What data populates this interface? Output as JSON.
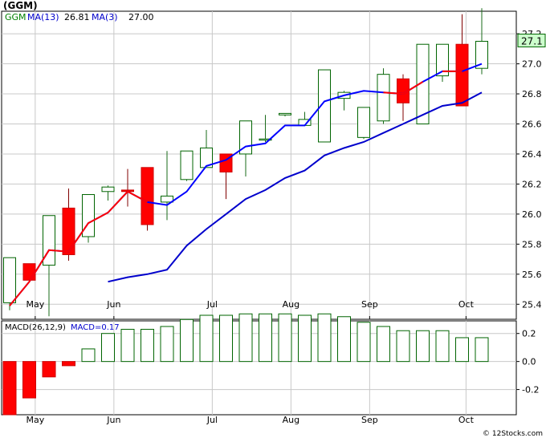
{
  "header": {
    "title": "(GGM)"
  },
  "footer": {
    "credit": "© 12Stocks.com"
  },
  "chart_data": [
    {
      "type": "candlestick",
      "legend": {
        "ticker": "GGM",
        "ma_long_label": "MA(13)",
        "ma_long_value": "26.81",
        "ma_short_label": "MA(3)",
        "ma_short_value": "27.00"
      },
      "price_badge": "27.1",
      "ylim": [
        25.3,
        27.35
      ],
      "yticks": [
        25.4,
        25.6,
        25.8,
        26.0,
        26.2,
        26.4,
        26.6,
        26.8,
        27.0,
        27.2
      ],
      "ytick_labels": [
        "25.4",
        "25.6",
        "25.8",
        "26.0",
        "26.2",
        "26.4",
        "26.6",
        "26.8",
        "27.0",
        "27.2"
      ],
      "months": [
        {
          "label": "May",
          "week": 1.3
        },
        {
          "label": "Jun",
          "week": 5.3
        },
        {
          "label": "Jul",
          "week": 10.3
        },
        {
          "label": "Aug",
          "week": 14.3
        },
        {
          "label": "Sep",
          "week": 18.3
        },
        {
          "label": "Oct",
          "week": 23.2
        }
      ],
      "candles": [
        {
          "o": 25.41,
          "h": 25.71,
          "l": 25.36,
          "c": 25.71
        },
        {
          "o": 25.67,
          "h": 25.67,
          "l": 25.55,
          "c": 25.56
        },
        {
          "o": 25.66,
          "h": 25.99,
          "l": 25.32,
          "c": 25.99
        },
        {
          "o": 26.04,
          "h": 26.17,
          "l": 25.69,
          "c": 25.73
        },
        {
          "o": 25.85,
          "h": 26.13,
          "l": 25.81,
          "c": 26.13
        },
        {
          "o": 26.15,
          "h": 26.19,
          "l": 26.09,
          "c": 26.18
        },
        {
          "o": 26.16,
          "h": 26.3,
          "l": 26.05,
          "c": 26.15
        },
        {
          "o": 26.31,
          "h": 26.31,
          "l": 25.89,
          "c": 25.93
        },
        {
          "o": 26.08,
          "h": 26.42,
          "l": 25.96,
          "c": 26.12
        },
        {
          "o": 26.23,
          "h": 26.42,
          "l": 26.22,
          "c": 26.42
        },
        {
          "o": 26.31,
          "h": 26.56,
          "l": 26.31,
          "c": 26.44
        },
        {
          "o": 26.4,
          "h": 26.4,
          "l": 26.1,
          "c": 26.28
        },
        {
          "o": 26.4,
          "h": 26.62,
          "l": 26.25,
          "c": 26.62
        },
        {
          "o": 26.5,
          "h": 26.66,
          "l": 26.48,
          "c": 26.5
        },
        {
          "o": 26.66,
          "h": 26.66,
          "l": 26.65,
          "c": 26.67
        },
        {
          "o": 26.59,
          "h": 26.68,
          "l": 26.59,
          "c": 26.63
        },
        {
          "o": 26.48,
          "h": 26.96,
          "l": 26.48,
          "c": 26.96
        },
        {
          "o": 26.77,
          "h": 26.82,
          "l": 26.69,
          "c": 26.81
        },
        {
          "o": 26.51,
          "h": 26.71,
          "l": 26.5,
          "c": 26.71
        },
        {
          "o": 26.62,
          "h": 26.97,
          "l": 26.6,
          "c": 26.93
        },
        {
          "o": 26.9,
          "h": 26.93,
          "l": 26.62,
          "c": 26.74
        },
        {
          "o": 26.6,
          "h": 27.13,
          "l": 26.6,
          "c": 27.13
        },
        {
          "o": 26.92,
          "h": 27.13,
          "l": 26.88,
          "c": 27.13
        },
        {
          "o": 27.13,
          "h": 27.33,
          "l": 26.72,
          "c": 26.72
        },
        {
          "o": 26.97,
          "h": 27.37,
          "l": 26.93,
          "c": 27.15
        }
      ],
      "ma3": [
        25.39,
        25.55,
        25.76,
        25.75,
        25.94,
        26.01,
        26.15,
        26.08,
        26.06,
        26.15,
        26.32,
        26.36,
        26.45,
        26.47,
        26.59,
        26.59,
        26.75,
        26.79,
        26.82,
        26.81,
        26.8,
        26.88,
        26.95,
        26.95,
        27.0
      ],
      "ma13": [
        null,
        null,
        null,
        null,
        null,
        25.55,
        25.58,
        25.6,
        25.63,
        25.79,
        25.9,
        26.0,
        26.1,
        26.16,
        26.24,
        26.29,
        26.39,
        26.44,
        26.48,
        26.54,
        26.6,
        26.66,
        26.72,
        26.74,
        26.81
      ],
      "ma13_red_segments": [],
      "ma3_red_segments": [
        [
          0,
          5
        ],
        [
          5,
          7
        ],
        [
          19,
          21
        ],
        [
          22,
          23
        ]
      ]
    },
    {
      "type": "bar",
      "legend": {
        "macd_label": "MACD(26,12,9)",
        "value_label": "MACD=0.17"
      },
      "ylim": [
        -0.38,
        0.29
      ],
      "yticks": [
        0.2,
        0.0,
        -0.2
      ],
      "ytick_labels": [
        "0.2",
        "0.0",
        "-0.2"
      ],
      "values": [
        -0.38,
        -0.26,
        -0.11,
        -0.03,
        0.09,
        0.2,
        0.23,
        0.23,
        0.25,
        0.3,
        0.33,
        0.33,
        0.34,
        0.34,
        0.34,
        0.33,
        0.34,
        0.32,
        0.28,
        0.25,
        0.22,
        0.22,
        0.22,
        0.17,
        0.17
      ]
    }
  ]
}
